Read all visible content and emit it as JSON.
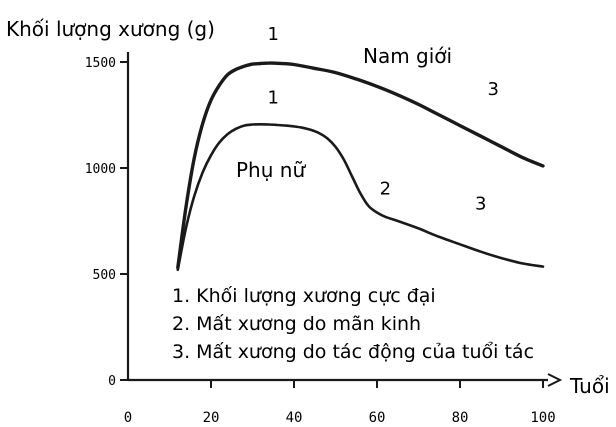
{
  "chart_data": {
    "type": "line",
    "ylabel": "Khối lượng xương (g)",
    "xlabel": "Tuổi",
    "xlim": [
      0,
      100
    ],
    "ylim": [
      0,
      1500
    ],
    "x_ticks": [
      {
        "value": 0,
        "label": "0"
      },
      {
        "value": 20,
        "label": "20"
      },
      {
        "value": 40,
        "label": "40"
      },
      {
        "value": 60,
        "label": "60"
      },
      {
        "value": 80,
        "label": "80"
      },
      {
        "value": 100,
        "label": "100"
      }
    ],
    "y_ticks": [
      {
        "value": 0,
        "label": "0"
      },
      {
        "value": 500,
        "label": "500"
      },
      {
        "value": 1000,
        "label": "1000"
      },
      {
        "value": 1500,
        "label": "1500"
      }
    ],
    "series": [
      {
        "name": "Nam giới",
        "x": [
          12,
          14,
          16,
          18,
          20,
          22,
          24,
          26,
          28,
          30,
          32,
          34,
          36,
          38,
          40,
          45,
          50,
          55,
          60,
          65,
          70,
          75,
          80,
          85,
          90,
          95,
          100
        ],
        "y": [
          530,
          820,
          1050,
          1210,
          1320,
          1390,
          1440,
          1465,
          1480,
          1490,
          1493,
          1495,
          1494,
          1492,
          1488,
          1470,
          1450,
          1420,
          1385,
          1345,
          1300,
          1250,
          1200,
          1150,
          1100,
          1050,
          1010
        ],
        "annotations": [
          {
            "x": 35,
            "y": 1500,
            "label": "1"
          },
          {
            "x": 88,
            "y": 1250,
            "label": "3"
          }
        ]
      },
      {
        "name": "Phụ nữ",
        "x": [
          12,
          14,
          16,
          18,
          20,
          22,
          24,
          26,
          28,
          30,
          32,
          34,
          36,
          38,
          40,
          42,
          44,
          46,
          48,
          50,
          52,
          54,
          56,
          58,
          60,
          62,
          65,
          70,
          75,
          80,
          85,
          90,
          95,
          100
        ],
        "y": [
          520,
          720,
          870,
          980,
          1060,
          1120,
          1160,
          1185,
          1200,
          1205,
          1206,
          1205,
          1203,
          1200,
          1196,
          1190,
          1180,
          1165,
          1140,
          1100,
          1040,
          960,
          880,
          820,
          790,
          770,
          750,
          715,
          675,
          640,
          605,
          575,
          550,
          535
        ],
        "annotations": [
          {
            "x": 35,
            "y": 1210,
            "label": "1"
          },
          {
            "x": 62,
            "y": 790,
            "label": "2"
          },
          {
            "x": 85,
            "y": 700,
            "label": "3"
          }
        ]
      }
    ],
    "legend_notes": [
      "1. Khối lượng xương cực đại",
      "2. Mất xương do mãn kinh",
      "3. Mất xương do tác động của tuổi tác"
    ]
  }
}
